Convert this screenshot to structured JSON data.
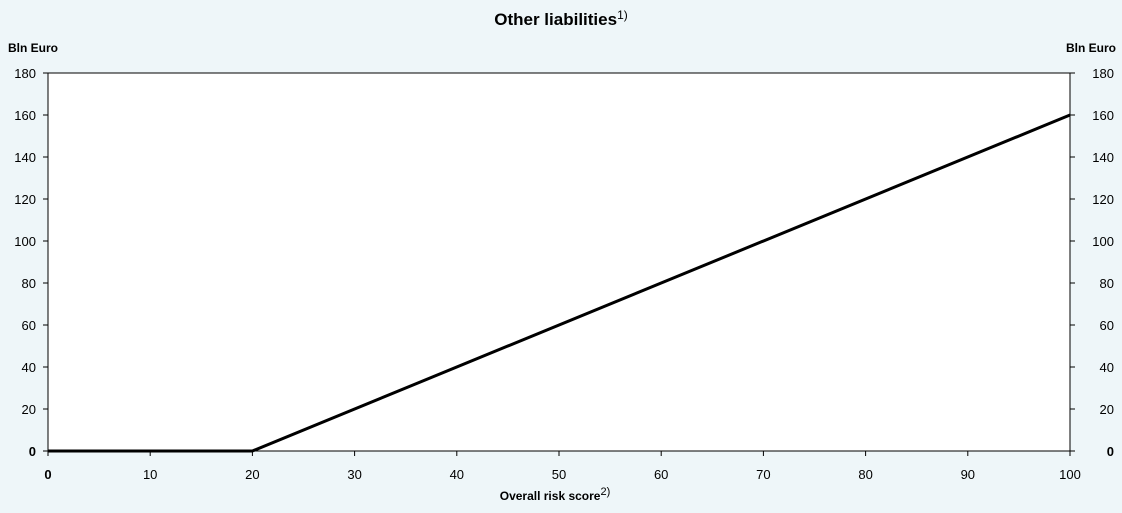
{
  "chart_data": {
    "type": "line",
    "title": "Other liabilities",
    "title_footnote": "1)",
    "xlabel": "Overall risk score",
    "xlabel_footnote": "2)",
    "ylabel_left": "Bln Euro",
    "ylabel_right": "Bln Euro",
    "xlim": [
      0,
      100
    ],
    "ylim": [
      0,
      180
    ],
    "x_ticks": [
      "0",
      "10",
      "20",
      "30",
      "40",
      "50",
      "60",
      "70",
      "80",
      "90",
      "100"
    ],
    "y_ticks": [
      "0",
      "20",
      "40",
      "60",
      "80",
      "100",
      "120",
      "140",
      "160",
      "180"
    ],
    "grid": false,
    "series": [
      {
        "x": [
          0,
          20,
          100
        ],
        "y": [
          0,
          0,
          160
        ],
        "color": "#000000"
      }
    ]
  },
  "colors": {
    "background": "#eef6f9",
    "plot_area": "#ffffff",
    "line": "#000000"
  }
}
